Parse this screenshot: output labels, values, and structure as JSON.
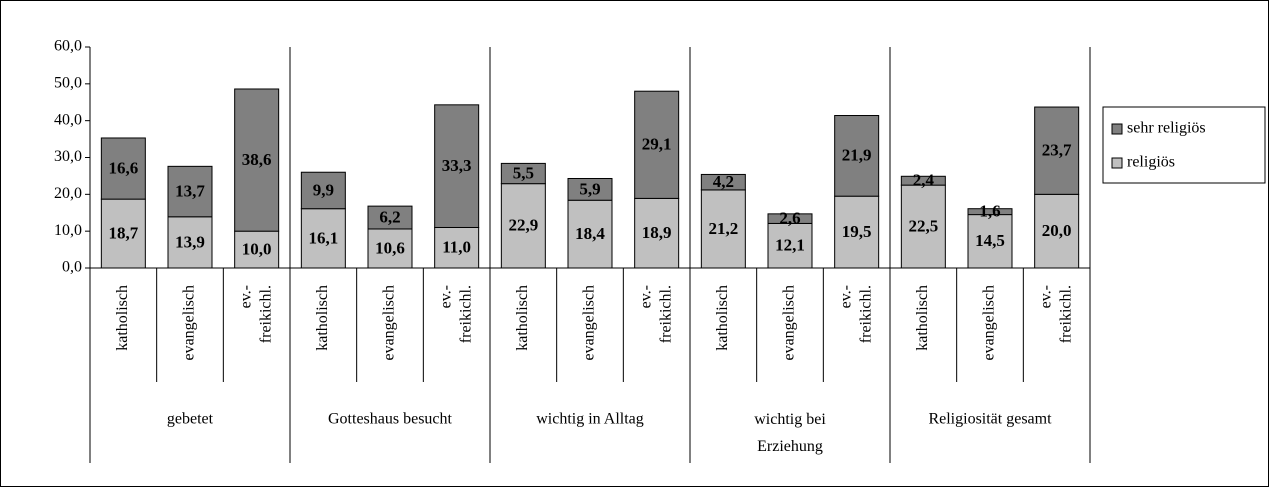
{
  "chart_data": {
    "type": "stacked_bar",
    "categories": [
      "katholisch",
      "evangelisch",
      "ev.-\nfreikichl.",
      "katholisch",
      "evangelisch",
      "ev.-\nfreikichl.",
      "katholisch",
      "evangelisch",
      "ev.-\nfreikichl.",
      "katholisch",
      "evangelisch",
      "ev.-\nfreikichl.",
      "katholisch",
      "evangelisch",
      "ev.-\nfreikichl."
    ],
    "groups": [
      "gebetet",
      "Gotteshaus besucht",
      "wichtig in Alltag",
      "wichtig bei\nErziehung",
      "Religiosität gesamt"
    ],
    "series": [
      {
        "name": "religiös",
        "color": "#c0c0c0",
        "values": [
          18.7,
          13.9,
          10.0,
          16.1,
          10.6,
          11.0,
          22.9,
          18.4,
          18.9,
          21.2,
          12.1,
          19.5,
          22.5,
          14.5,
          20.0
        ],
        "value_labels": [
          "18,7",
          "13,9",
          "10,0",
          "16,1",
          "10,6",
          "11,0",
          "22,9",
          "18,4",
          "18,9",
          "21,2",
          "12,1",
          "19,5",
          "22,5",
          "14,5",
          "20,0"
        ]
      },
      {
        "name": "sehr religiös",
        "color": "#808080",
        "values": [
          16.6,
          13.7,
          38.6,
          9.9,
          6.2,
          33.3,
          5.5,
          5.9,
          29.1,
          4.2,
          2.6,
          21.9,
          2.4,
          1.6,
          23.7
        ],
        "value_labels": [
          "16,6",
          "13,7",
          "38,6",
          "9,9",
          "6,2",
          "33,3",
          "5,5",
          "5,9",
          "29,1",
          "4,2",
          "2,6",
          "21,9",
          "2,4",
          "1,6",
          "23,7"
        ]
      }
    ],
    "ylim": [
      0,
      60
    ],
    "yticks": [
      {
        "value": 0,
        "label": "0,0"
      },
      {
        "value": 10,
        "label": "10,0"
      },
      {
        "value": 20,
        "label": "20,0"
      },
      {
        "value": 30,
        "label": "30,0"
      },
      {
        "value": 40,
        "label": "40,0"
      },
      {
        "value": 50,
        "label": "50,0"
      },
      {
        "value": 60,
        "label": "60,0"
      }
    ],
    "legend": "right"
  }
}
